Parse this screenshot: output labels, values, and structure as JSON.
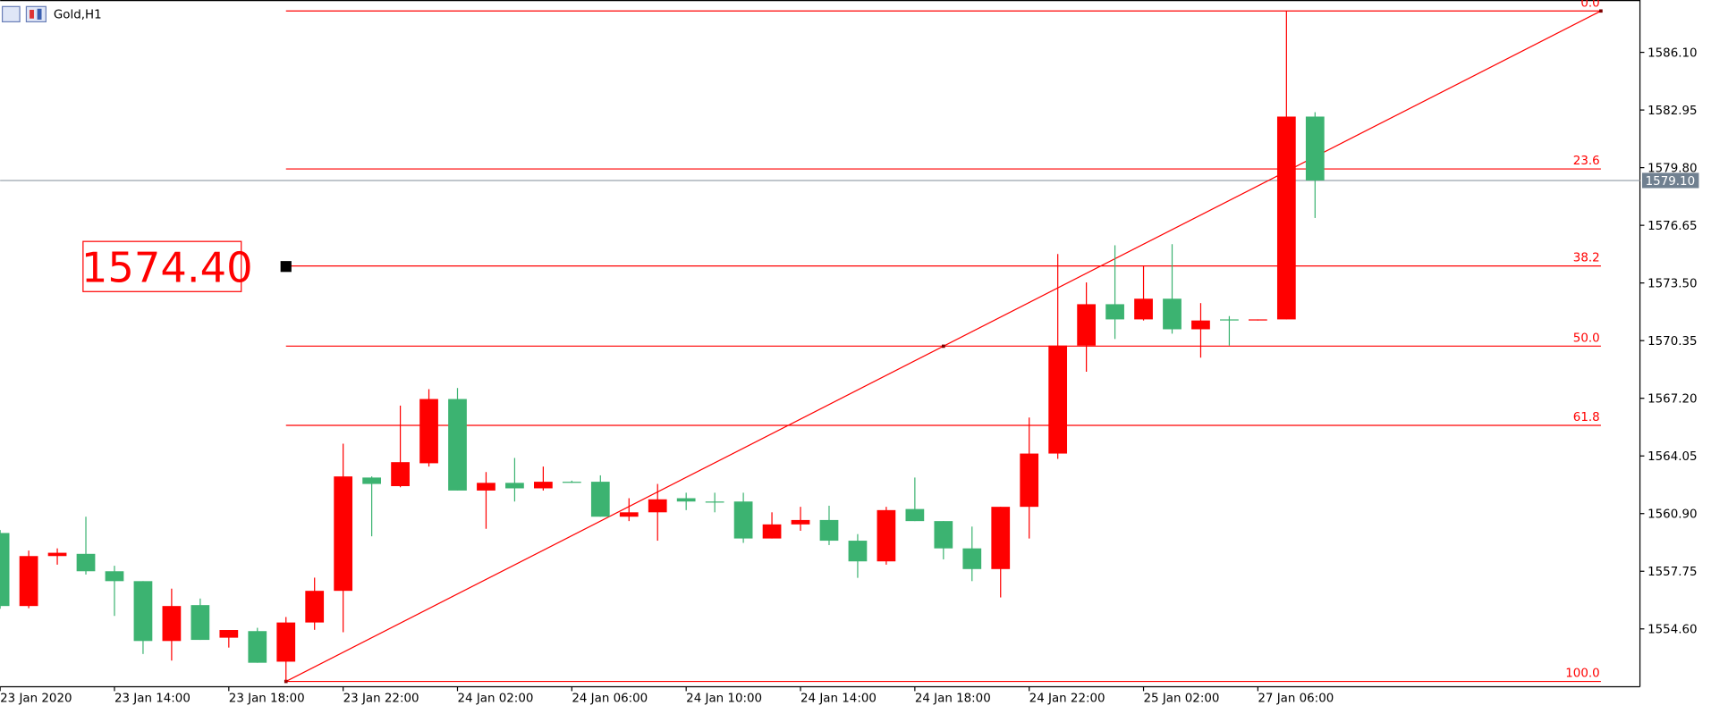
{
  "chart_data": {
    "type": "candlestick",
    "title": "Gold,H1",
    "categories": [
      "23 Jan 2020",
      null,
      null,
      null,
      "23 Jan 14:00",
      null,
      null,
      null,
      "23 Jan 18:00",
      null,
      null,
      null,
      "23 Jan 22:00",
      null,
      null,
      null,
      "24 Jan 02:00",
      null,
      null,
      null,
      "24 Jan 06:00",
      null,
      null,
      null,
      "24 Jan 10:00",
      null,
      null,
      null,
      "24 Jan 14:00",
      null,
      null,
      null,
      "24 Jan 18:00",
      null,
      null,
      null,
      "24 Jan 22:00",
      null,
      null,
      null,
      "25 Jan 02:00",
      null,
      null,
      null,
      "27 Jan 06:00",
      null,
      null
    ],
    "series": [
      {
        "name": "Gold",
        "up_color": "#ff0000",
        "down_color": "#3cb371",
        "open": [
          1559.84,
          1555.85,
          1558.58,
          1558.7,
          1557.75,
          1557.21,
          1553.94,
          1555.9,
          1554.12,
          1554.48,
          1552.81,
          1554.95,
          1556.68,
          1562.87,
          1562.4,
          1563.65,
          1567.16,
          1562.16,
          1562.58,
          1562.28,
          1562.64,
          1562.64,
          1560.73,
          1560.97,
          1561.74,
          1561.56,
          1561.56,
          1559.54,
          1560.31,
          1560.55,
          1559.42,
          1558.29,
          1561.15,
          1560.49,
          1559.0,
          1557.87,
          1561.27,
          1564.18,
          1570.08,
          1572.34,
          1571.51,
          1572.64,
          1570.97,
          1571.51,
          1571.45,
          1571.51,
          1582.59
        ],
        "high": [
          1560.0,
          1558.88,
          1559.0,
          1560.73,
          1558.05,
          1557.21,
          1556.8,
          1556.26,
          1554.54,
          1554.66,
          1555.25,
          1557.4,
          1564.72,
          1562.93,
          1566.8,
          1567.7,
          1567.76,
          1563.17,
          1563.94,
          1563.47,
          1562.7,
          1562.99,
          1561.74,
          1562.52,
          1562.04,
          1562.04,
          1562.04,
          1560.97,
          1561.27,
          1561.33,
          1559.78,
          1561.27,
          1562.87,
          1560.49,
          1560.19,
          1561.27,
          1566.15,
          1575.08,
          1573.53,
          1575.56,
          1574.43,
          1575.62,
          1572.4,
          1571.69,
          1571.51,
          1588.36,
          1582.83
        ],
        "low": [
          1555.7,
          1555.73,
          1558.11,
          1557.57,
          1555.31,
          1553.23,
          1552.87,
          1554.0,
          1553.58,
          1552.75,
          1551.73,
          1554.55,
          1554.42,
          1559.66,
          1562.34,
          1563.47,
          1562.16,
          1560.07,
          1561.56,
          1562.16,
          1562.58,
          1560.73,
          1560.49,
          1559.42,
          1561.09,
          1560.97,
          1559.3,
          1559.54,
          1559.96,
          1559.18,
          1557.39,
          1558.11,
          1560.49,
          1558.4,
          1557.21,
          1556.32,
          1559.54,
          1563.89,
          1568.65,
          1570.44,
          1571.45,
          1570.73,
          1569.42,
          1570.08,
          1571.45,
          1571.51,
          1577.05
        ],
        "close": [
          1555.85,
          1558.58,
          1558.76,
          1557.75,
          1557.21,
          1553.94,
          1555.85,
          1554.0,
          1554.54,
          1552.75,
          1554.95,
          1556.68,
          1562.93,
          1562.52,
          1563.71,
          1567.16,
          1562.16,
          1562.58,
          1562.28,
          1562.64,
          1562.6,
          1560.73,
          1560.97,
          1561.68,
          1561.56,
          1561.5,
          1559.54,
          1560.31,
          1560.55,
          1559.42,
          1558.29,
          1561.09,
          1560.49,
          1559.0,
          1557.87,
          1561.27,
          1564.18,
          1570.08,
          1572.34,
          1571.51,
          1572.64,
          1570.97,
          1571.45,
          1571.45,
          1571.51,
          1582.59,
          1579.1
        ]
      }
    ],
    "ylim": [
      1551.44,
      1588.96
    ],
    "yticks": [
      {
        "value": 1586.1,
        "label": "1586.10"
      },
      1582.95,
      {
        "value": 1579.8,
        "label": "1579.80"
      },
      1576.65,
      {
        "value": 1573.5,
        "label": "1573.50"
      },
      1570.35,
      {
        "value": 1567.2,
        "label": "1567.20"
      },
      1564.05,
      {
        "value": 1560.9,
        "label": "1560.90"
      },
      1557.75,
      {
        "value": 1554.6,
        "label": "1554.60"
      }
    ],
    "current_price": {
      "value": 1579.1,
      "label": "1579.10"
    },
    "fib_levels": [
      {
        "value": 1588.36,
        "label": "0.0"
      },
      {
        "value": 1579.73,
        "label": "23.6"
      },
      {
        "value": 1574.43,
        "label": "38.2"
      },
      {
        "value": 1570.05,
        "label": "50.0"
      },
      {
        "value": 1565.72,
        "label": "61.8"
      },
      {
        "value": 1551.73,
        "label": "100.0"
      }
    ],
    "fib_color": "#ff0000",
    "trendline": {
      "x": [
        10,
        56
      ],
      "y": [
        1551.73,
        1588.36
      ]
    },
    "price_label": {
      "value": 1574.4,
      "label": "1574.40"
    }
  }
}
